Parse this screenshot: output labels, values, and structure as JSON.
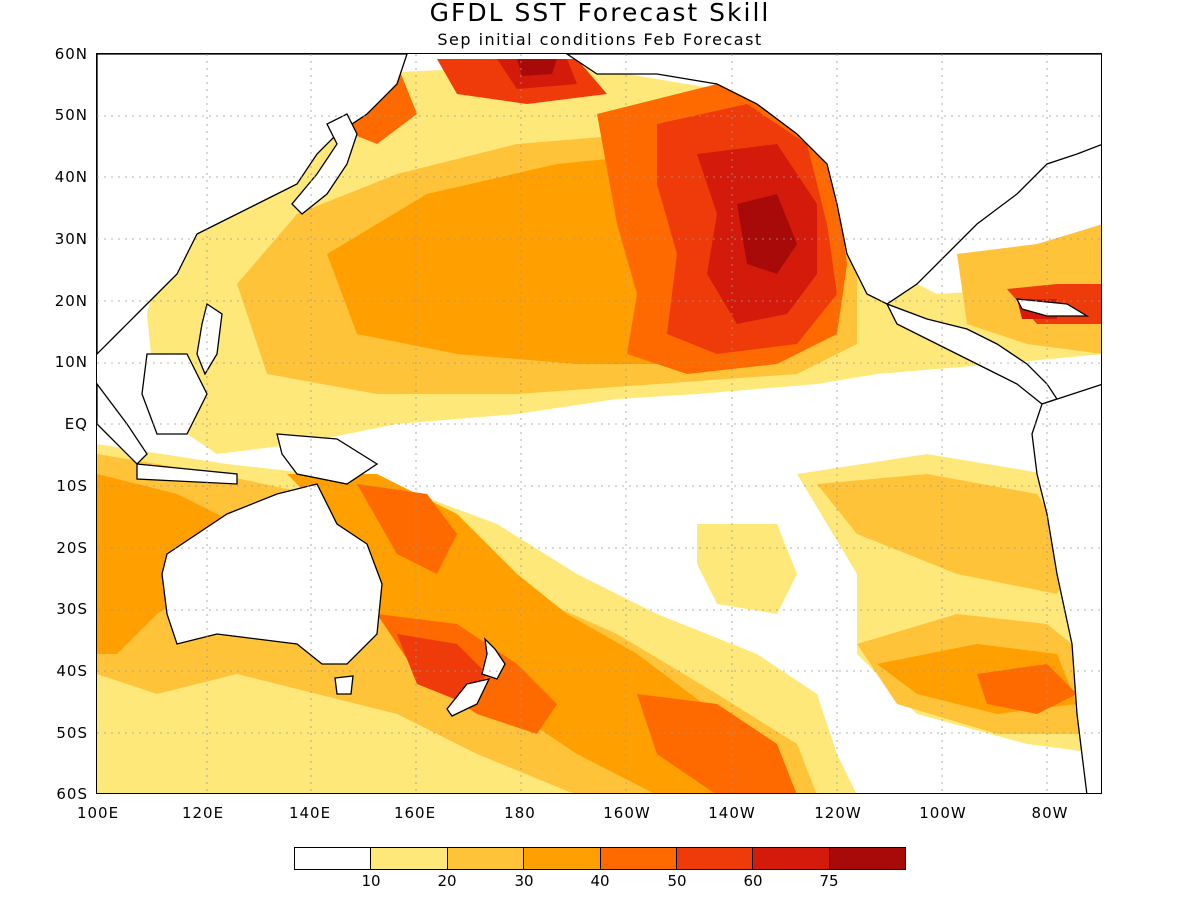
{
  "title": "GFDL SST Forecast Skill",
  "subtitle": "Sep initial conditions  Feb Forecast",
  "lat_labels": [
    "60N",
    "50N",
    "40N",
    "30N",
    "20N",
    "10N",
    "EQ",
    "10S",
    "20S",
    "30S",
    "40S",
    "50S",
    "60S"
  ],
  "lon_labels": [
    "100E",
    "120E",
    "140E",
    "160E",
    "180",
    "160W",
    "140W",
    "120W",
    "100W",
    "80W"
  ],
  "legend": {
    "colors": [
      "#ffffff",
      "#ffe87a",
      "#ffc33a",
      "#ff9f00",
      "#ff6a00",
      "#ef3a0a",
      "#d41a0a",
      "#a80a0a"
    ],
    "labels": [
      "10",
      "20",
      "30",
      "40",
      "50",
      "60",
      "75"
    ]
  },
  "map_data": {
    "type": "contour-filled",
    "domain": {
      "lon": [
        100,
        290
      ],
      "lat": [
        -60,
        60
      ]
    },
    "levels": [
      10,
      20,
      30,
      40,
      50,
      60,
      75
    ],
    "grid": true
  }
}
